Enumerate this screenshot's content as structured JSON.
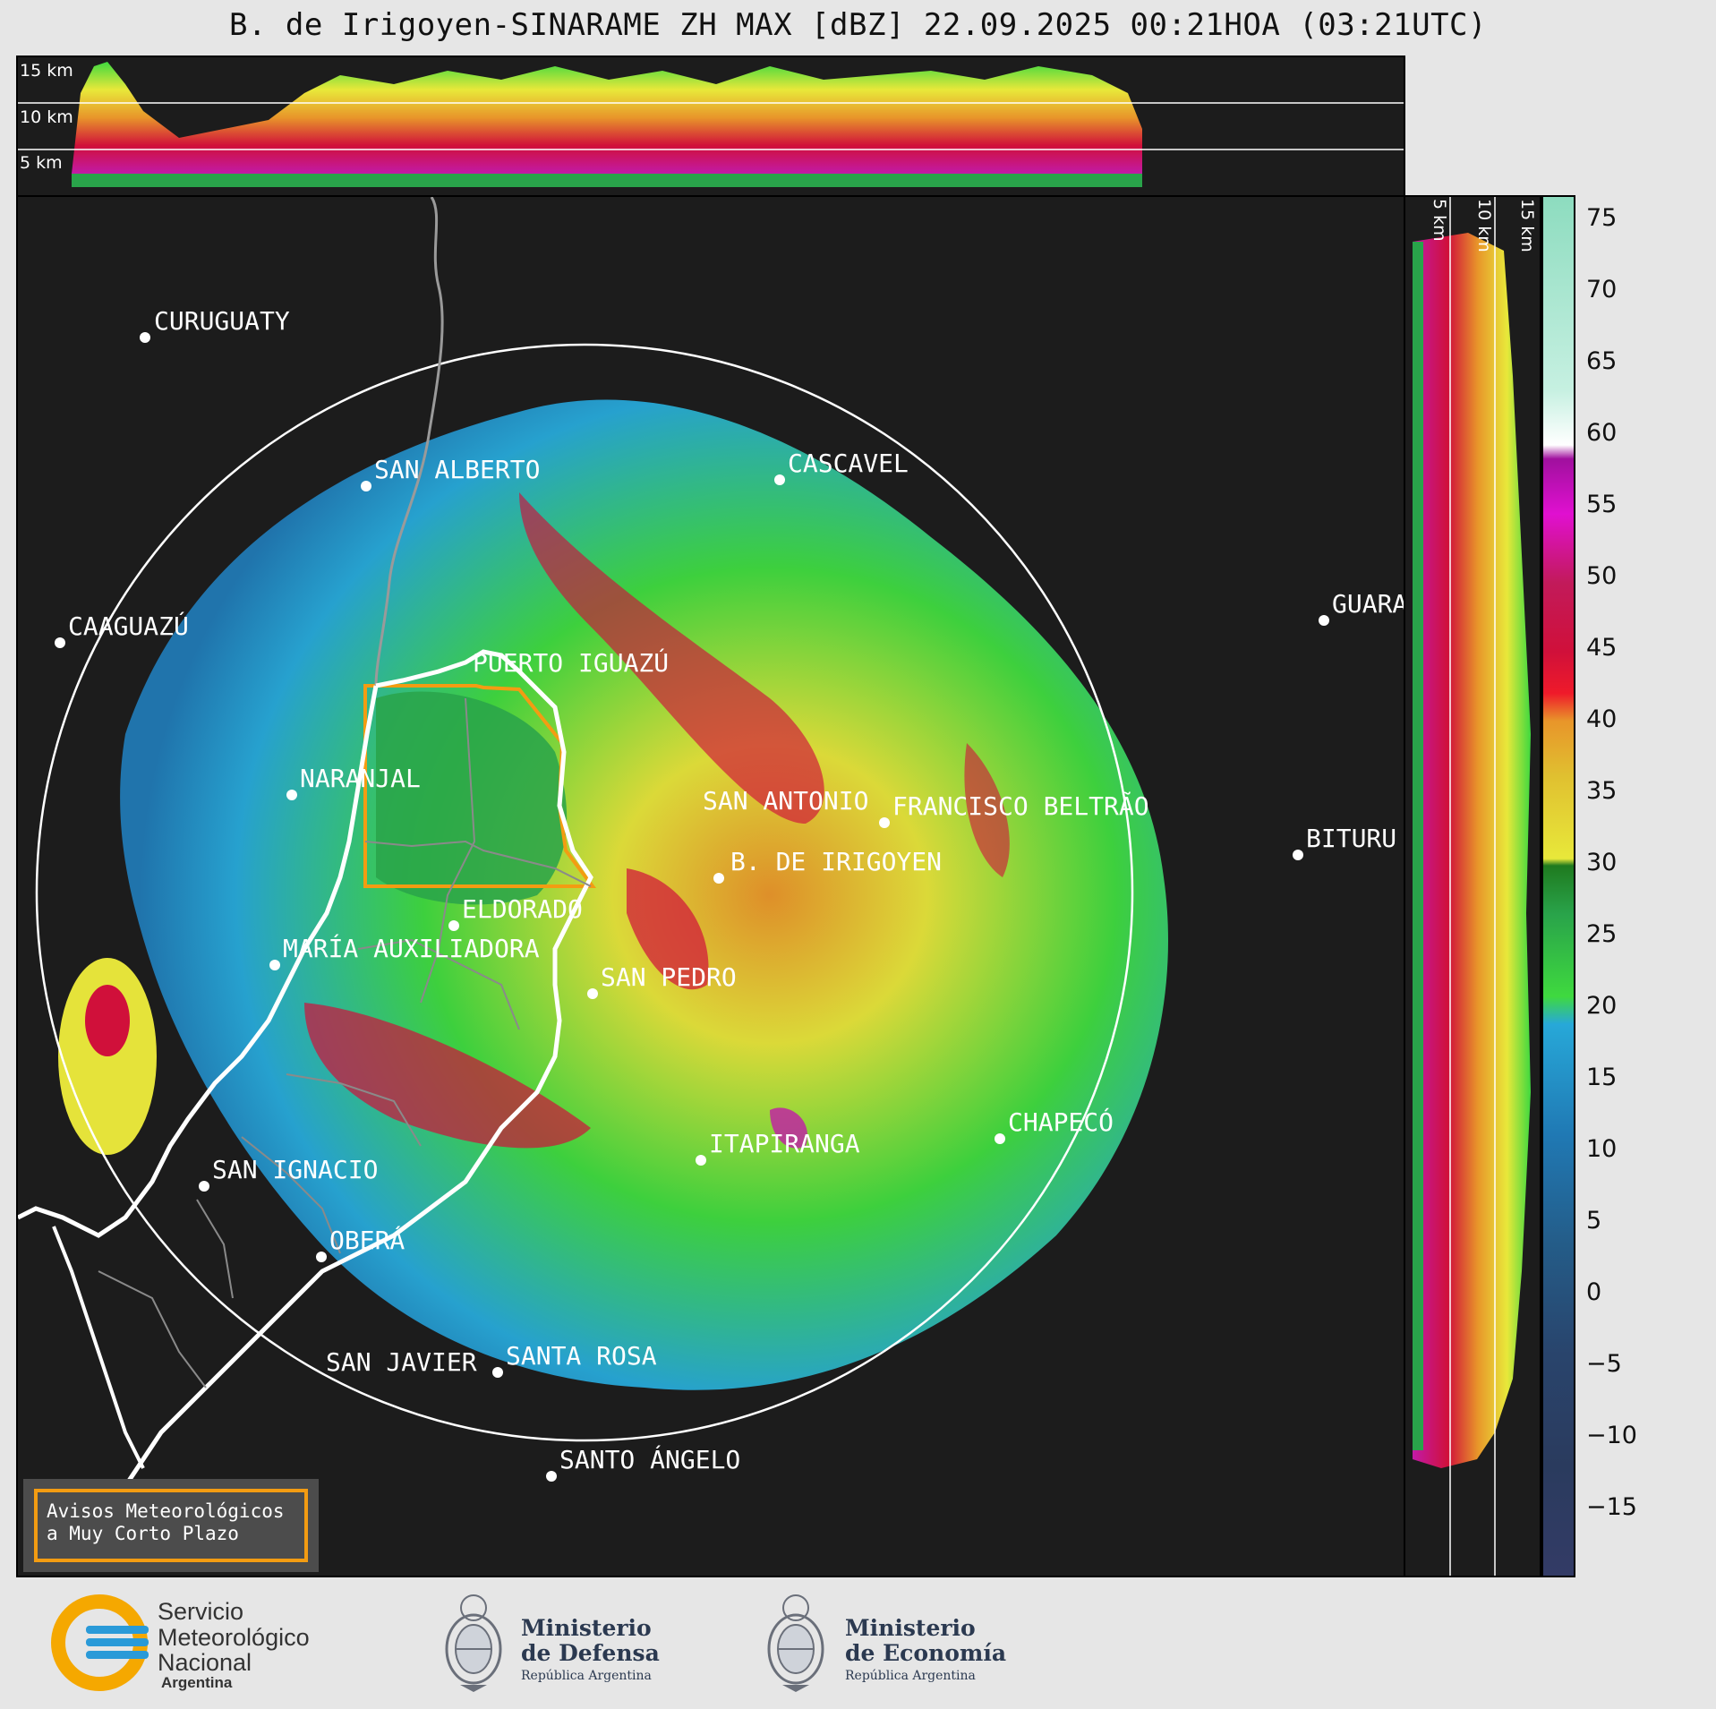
{
  "title": "B. de Irigoyen-SINARAME ZH MAX [dBZ] 22.09.2025 00:21HOA (03:21UTC)",
  "top_profile": {
    "altitude_labels": [
      "15 km",
      "10 km",
      "5 km"
    ]
  },
  "right_profile": {
    "altitude_labels": [
      "5 km",
      "10 km",
      "15 km"
    ]
  },
  "colors": {
    "range_ring": "#ffffff",
    "notice_border": "#f39c12",
    "background": "#1c1c1c"
  },
  "cities": [
    {
      "name": "CURUGUATY"
    },
    {
      "name": "SAN ALBERTO"
    },
    {
      "name": "CASCAVEL"
    },
    {
      "name": "CAAGUAZÚ"
    },
    {
      "name": "PUERTO IGUAZÚ"
    },
    {
      "name": "GUARA"
    },
    {
      "name": "NARANJAL"
    },
    {
      "name": "SAN ANTONIO"
    },
    {
      "name": "FRANCISCO BELTRÃO"
    },
    {
      "name": "B. DE IRIGOYEN"
    },
    {
      "name": "BITURU"
    },
    {
      "name": "ELDORADO"
    },
    {
      "name": "MARÍA AUXILIADORA"
    },
    {
      "name": "SAN PEDRO"
    },
    {
      "name": "ITAPIRANGA"
    },
    {
      "name": "CHAPECÓ"
    },
    {
      "name": "SAN IGNACIO"
    },
    {
      "name": "OBERÁ"
    },
    {
      "name": "SAN JAVIER"
    },
    {
      "name": "SANTA ROSA"
    },
    {
      "name": "SANTO ÁNGELO"
    }
  ],
  "colorbar": {
    "ticks": [
      "75",
      "70",
      "65",
      "60",
      "55",
      "50",
      "45",
      "40",
      "35",
      "30",
      "25",
      "20",
      "15",
      "10",
      "5",
      "0",
      "−5",
      "−10",
      "−15"
    ]
  },
  "notice": {
    "line1": "Avisos Meteorológicos",
    "line2": "a Muy Corto Plazo"
  },
  "logos": {
    "smn": {
      "line1": "Servicio",
      "line2": "Meteorológico",
      "line3": "Nacional",
      "line4": "Argentina"
    },
    "defensa": {
      "line1": "Ministerio",
      "line2": "de Defensa",
      "line3": "República Argentina"
    },
    "economia": {
      "line1": "Ministerio",
      "line2": "de Economía",
      "line3": "República Argentina"
    }
  }
}
